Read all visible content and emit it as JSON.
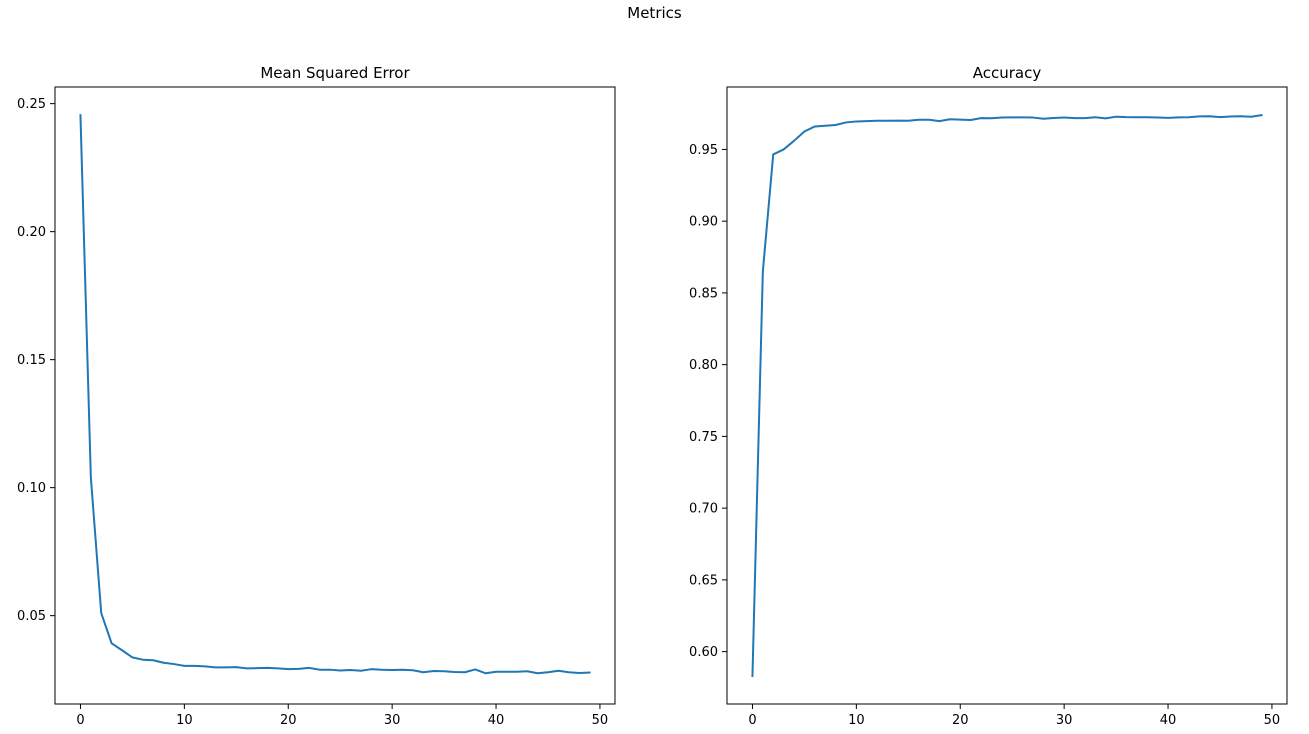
{
  "figure": {
    "suptitle": "Metrics"
  },
  "colors": {
    "line": "#1f77b4",
    "axis": "#000000",
    "background": "#ffffff"
  },
  "chart_data": [
    {
      "type": "line",
      "title": "Mean Squared Error",
      "xlabel": "",
      "ylabel": "",
      "xlim": [
        -2.45,
        51.45
      ],
      "ylim": [
        0.0155,
        0.2565
      ],
      "xticks": [
        0,
        10,
        20,
        30,
        40,
        50
      ],
      "xtick_labels": [
        "0",
        "10",
        "20",
        "30",
        "40",
        "50"
      ],
      "yticks": [
        0.05,
        0.1,
        0.15,
        0.2,
        0.25
      ],
      "ytick_labels": [
        "0.05",
        "0.10",
        "0.15",
        "0.20",
        "0.25"
      ],
      "grid": false,
      "series": [
        {
          "x": [
            0,
            1,
            2,
            3,
            4,
            5,
            6,
            7,
            8,
            9,
            10,
            11,
            12,
            13,
            14,
            15,
            16,
            17,
            18,
            19,
            20,
            21,
            22,
            23,
            24,
            25,
            26,
            27,
            28,
            29,
            30,
            31,
            32,
            33,
            34,
            35,
            36,
            37,
            38,
            39,
            40,
            41,
            42,
            43,
            44,
            45,
            46,
            47,
            48,
            49
          ],
          "values": [
            0.2455,
            0.104,
            0.051,
            0.0392,
            0.0365,
            0.0337,
            0.0328,
            0.0326,
            0.0316,
            0.0311,
            0.0304,
            0.0304,
            0.0302,
            0.0298,
            0.0298,
            0.0299,
            0.0294,
            0.0295,
            0.0296,
            0.0294,
            0.0291,
            0.0292,
            0.0296,
            0.0289,
            0.0289,
            0.0286,
            0.0288,
            0.0285,
            0.0291,
            0.0289,
            0.0288,
            0.0289,
            0.0287,
            0.0279,
            0.0284,
            0.0283,
            0.028,
            0.0279,
            0.029,
            0.0275,
            0.0281,
            0.0281,
            0.0281,
            0.0283,
            0.0275,
            0.0279,
            0.0285,
            0.0279,
            0.0276,
            0.0278
          ]
        }
      ]
    },
    {
      "type": "line",
      "title": "Accuracy",
      "xlabel": "",
      "ylabel": "",
      "xlim": [
        -2.45,
        51.45
      ],
      "ylim": [
        0.5635,
        0.9935
      ],
      "xticks": [
        0,
        10,
        20,
        30,
        40,
        50
      ],
      "xtick_labels": [
        "0",
        "10",
        "20",
        "30",
        "40",
        "50"
      ],
      "yticks": [
        0.6,
        0.65,
        0.7,
        0.75,
        0.8,
        0.85,
        0.9,
        0.95
      ],
      "ytick_labels": [
        "0.60",
        "0.65",
        "0.70",
        "0.75",
        "0.80",
        "0.85",
        "0.90",
        "0.95"
      ],
      "grid": false,
      "series": [
        {
          "x": [
            0,
            1,
            2,
            3,
            4,
            5,
            6,
            7,
            8,
            9,
            10,
            11,
            12,
            13,
            14,
            15,
            16,
            17,
            18,
            19,
            20,
            21,
            22,
            23,
            24,
            25,
            26,
            27,
            28,
            29,
            30,
            31,
            32,
            33,
            34,
            35,
            36,
            37,
            38,
            39,
            40,
            41,
            42,
            43,
            44,
            45,
            46,
            47,
            48,
            49
          ],
          "values": [
            0.583,
            0.865,
            0.9465,
            0.95,
            0.956,
            0.9625,
            0.966,
            0.9665,
            0.967,
            0.9688,
            0.9695,
            0.9697,
            0.97,
            0.97,
            0.9701,
            0.97,
            0.9707,
            0.9707,
            0.9697,
            0.971,
            0.9708,
            0.9705,
            0.9718,
            0.9717,
            0.9722,
            0.9723,
            0.9723,
            0.9722,
            0.9714,
            0.9719,
            0.9722,
            0.9718,
            0.9718,
            0.9724,
            0.9716,
            0.9728,
            0.9725,
            0.9724,
            0.9724,
            0.9722,
            0.972,
            0.9723,
            0.9724,
            0.973,
            0.9731,
            0.9725,
            0.9729,
            0.9731,
            0.9728,
            0.9739
          ]
        }
      ]
    }
  ]
}
